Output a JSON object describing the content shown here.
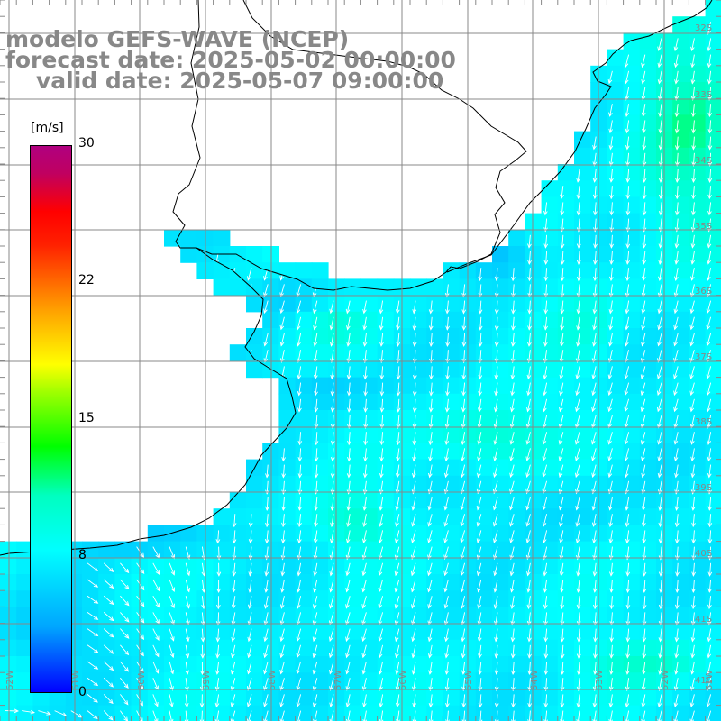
{
  "title": {
    "model": "modelo GEFS-WAVE (NCEP)",
    "forecast": "forecast date: 2025-05-02 00:00:00",
    "valid": "valid date: 2025-05-07 09:00:00"
  },
  "colorbar": {
    "unit": "[m/s]",
    "min": 0,
    "max": 30,
    "ticks": [
      "30",
      "22",
      "15",
      "8",
      "0"
    ]
  },
  "map": {
    "lat_labels": [
      "32S",
      "33S",
      "34S",
      "35S",
      "36S",
      "37S",
      "38S",
      "39S",
      "40S",
      "41S"
    ],
    "lon_labels": [
      "62W",
      "61W",
      "60W",
      "59W",
      "58W",
      "57W",
      "56W",
      "55W",
      "54W",
      "53W",
      "52W",
      "51W"
    ],
    "colors": {
      "land": "#ffffff",
      "coast": "#000000",
      "grid": "#888888",
      "vector": "#ffffff",
      "label": "#888888"
    }
  }
}
